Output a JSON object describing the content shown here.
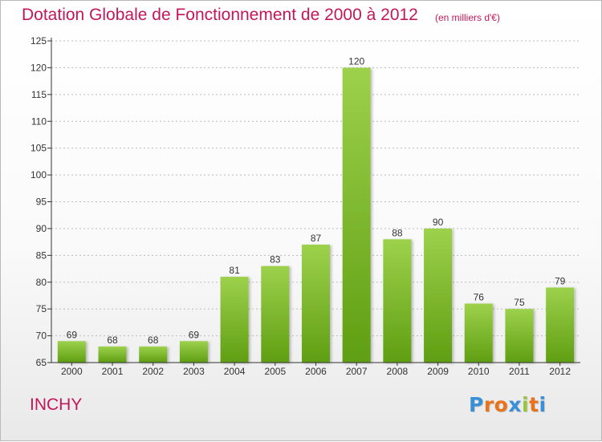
{
  "header": {
    "title": "Dotation Globale de Fonctionnement de 2000 à 2012",
    "subtitle": "(en milliers d'€)"
  },
  "footer": {
    "commune": "INCHY",
    "brand": "Proxiti"
  },
  "colors": {
    "title": "#c2185b",
    "bar_top": "#9dd14c",
    "bar_bottom": "#5f9e12",
    "axis": "#333333",
    "grid": "#bbbbbb",
    "logo_letters": [
      "#3a8fd6",
      "#e8731c",
      "#e8731c",
      "#3a8fd6",
      "#9ac43c",
      "#e8731c",
      "#3a8fd6"
    ]
  },
  "chart_data": {
    "type": "bar",
    "title": "Dotation Globale de Fonctionnement de 2000 à 2012",
    "subtitle": "(en milliers d'€)",
    "categories": [
      "2000",
      "2001",
      "2002",
      "2003",
      "2004",
      "2005",
      "2006",
      "2007",
      "2008",
      "2009",
      "2010",
      "2011",
      "2012"
    ],
    "values": [
      69,
      68,
      68,
      69,
      81,
      83,
      87,
      120,
      88,
      90,
      76,
      75,
      79
    ],
    "ylim": [
      65,
      125
    ],
    "yticks": [
      65,
      70,
      75,
      80,
      85,
      90,
      95,
      100,
      105,
      110,
      115,
      120,
      125
    ],
    "grid": true,
    "legend": "none"
  }
}
